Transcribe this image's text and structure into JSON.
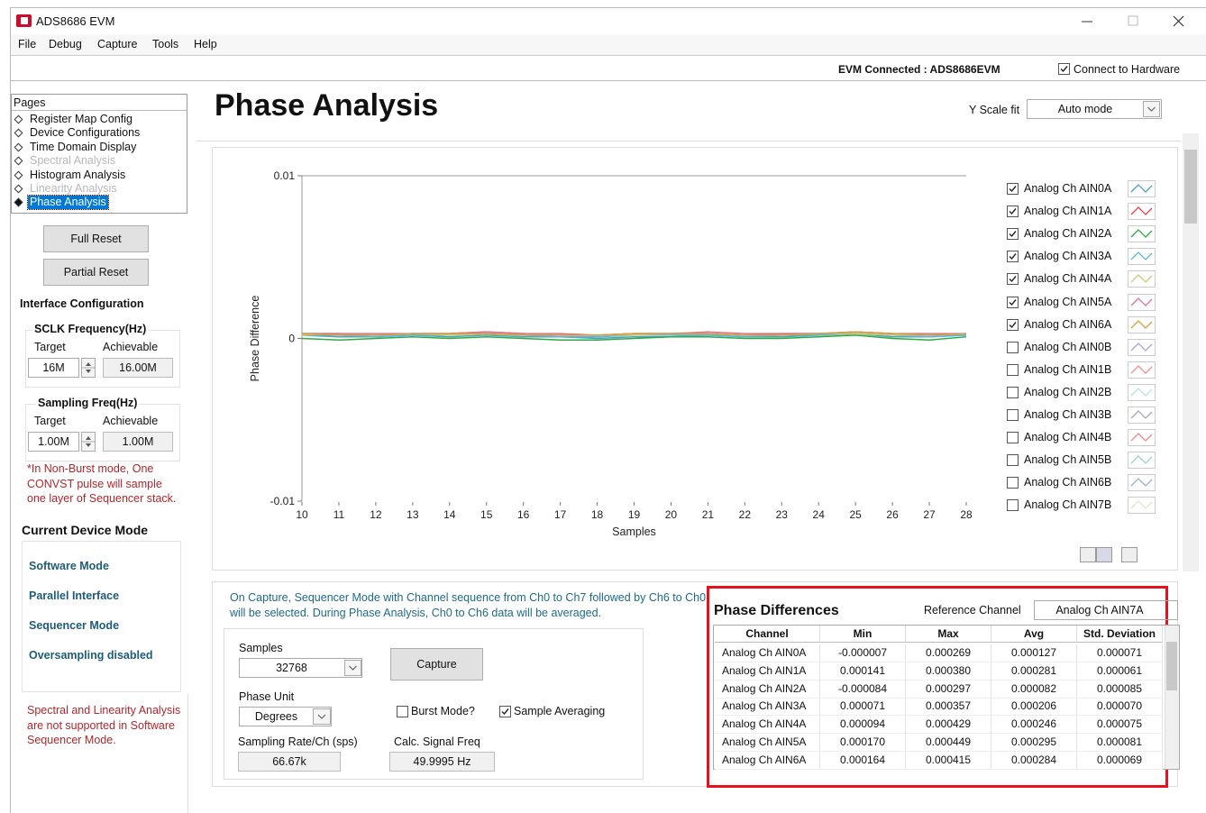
{
  "window": {
    "title": "ADS8686 EVM"
  },
  "menu": [
    "File",
    "Debug",
    "Capture",
    "Tools",
    "Help"
  ],
  "status": {
    "connection": "EVM Connected : ADS8686EVM",
    "connect_label": "Connect to Hardware",
    "connect_checked": true
  },
  "pages": {
    "title": "Pages",
    "items": [
      {
        "label": "Register Map Config"
      },
      {
        "label": "Device Configurations"
      },
      {
        "label": "Time Domain Display"
      },
      {
        "label": "Spectral Analysis",
        "disabled": true
      },
      {
        "label": "Histogram Analysis"
      },
      {
        "label": "Linearity Analysis",
        "disabled": true
      },
      {
        "label": "Phase Analysis",
        "selected": true
      }
    ]
  },
  "buttons": {
    "full_reset": "Full Reset",
    "partial_reset": "Partial Reset"
  },
  "interface": {
    "title": "Interface Configuration",
    "sclk": {
      "title": "SCLK Frequency(Hz)",
      "target_label": "Target",
      "achievable_label": "Achievable",
      "target": "16M",
      "achievable": "16.00M"
    },
    "sampling": {
      "title": "Sampling Freq(Hz)",
      "target_label": "Target",
      "achievable_label": "Achievable",
      "target": "1.00M",
      "achievable": "1.00M"
    },
    "note": "*In Non-Burst mode, One CONVST pulse will sample one layer of Sequencer stack."
  },
  "device_mode": {
    "title": "Current Device Mode",
    "items": [
      "Software Mode",
      "Parallel Interface",
      "Sequencer Mode",
      "Oversampling disabled"
    ],
    "warning": "Spectral and Linearity Analysis are not supported in Software Sequencer Mode."
  },
  "header": {
    "title": "Phase Analysis",
    "y_scale_label": "Y Scale fit",
    "y_scale_value": "Auto mode"
  },
  "chart_data": {
    "type": "line",
    "x_label": "Samples",
    "y_label": "Phase Difference",
    "x": [
      10,
      11,
      12,
      13,
      14,
      15,
      16,
      17,
      18,
      19,
      20,
      21,
      22,
      23,
      24,
      25,
      26,
      27,
      28
    ],
    "xlim": [
      10,
      28
    ],
    "xticks": [
      10,
      11,
      12,
      13,
      14,
      15,
      16,
      17,
      18,
      19,
      20,
      21,
      22,
      23,
      24,
      25,
      26,
      27,
      28
    ],
    "ylim": [
      -0.01,
      0.01
    ],
    "yticks": [
      -0.01,
      0,
      0.01
    ],
    "series": [
      {
        "name": "Analog Ch AIN0A",
        "color": "#4aa3c0",
        "checked": true,
        "values": [
          0.0002,
          0.0001,
          0.0001,
          0.0002,
          0.0001,
          0.0002,
          0.0001,
          0.0001,
          0,
          0.0001,
          0.0001,
          0.0002,
          0.0001,
          0.0001,
          0.0002,
          0.0003,
          0.0001,
          0.0001,
          0.0002
        ]
      },
      {
        "name": "Analog Ch AIN1A",
        "color": "#e0404a",
        "checked": true,
        "values": [
          0.0003,
          0.0003,
          0.0002,
          0.0003,
          0.0003,
          0.0004,
          0.0003,
          0.0002,
          0.0002,
          0.0003,
          0.0003,
          0.0003,
          0.0002,
          0.0003,
          0.0003,
          0.0004,
          0.0003,
          0.0002,
          0.0003
        ]
      },
      {
        "name": "Analog Ch AIN2A",
        "color": "#2eaa3e",
        "checked": true,
        "values": [
          0,
          -0.0001,
          0,
          0.0001,
          0,
          0.0001,
          0,
          -0.0001,
          -0.0001,
          0,
          0.0001,
          0.0001,
          0,
          0,
          0.0001,
          0.0002,
          0,
          -0.0001,
          0.0001
        ]
      },
      {
        "name": "Analog Ch AIN3A",
        "color": "#58b4e4",
        "checked": true,
        "values": [
          0.0002,
          0.0002,
          0.0001,
          0.0002,
          0.0002,
          0.0003,
          0.0002,
          0.0001,
          0.0001,
          0.0002,
          0.0002,
          0.0002,
          0.0001,
          0.0002,
          0.0002,
          0.0003,
          0.0002,
          0.0001,
          0.0002
        ]
      },
      {
        "name": "Analog Ch AIN4A",
        "color": "#cfc878",
        "checked": true,
        "values": [
          0.0002,
          0.0003,
          0.0002,
          0.0003,
          0.0002,
          0.0003,
          0.0003,
          0.0002,
          0.0002,
          0.0002,
          0.0003,
          0.0003,
          0.0002,
          0.0002,
          0.0003,
          0.0003,
          0.0002,
          0.0002,
          0.0003
        ]
      },
      {
        "name": "Analog Ch AIN5A",
        "color": "#e0708e",
        "checked": true,
        "values": [
          0.0003,
          0.0003,
          0.0003,
          0.0003,
          0.0003,
          0.0004,
          0.0003,
          0.0003,
          0.0002,
          0.0003,
          0.0003,
          0.0004,
          0.0003,
          0.0003,
          0.0003,
          0.0004,
          0.0003,
          0.0003,
          0.0003
        ]
      },
      {
        "name": "Analog Ch AIN6A",
        "color": "#d2a040",
        "checked": true,
        "values": [
          0.0003,
          0.0002,
          0.0002,
          0.0003,
          0.0003,
          0.0003,
          0.0002,
          0.0002,
          0.0002,
          0.0003,
          0.0003,
          0.0003,
          0.0002,
          0.0002,
          0.0003,
          0.0004,
          0.0003,
          0.0002,
          0.0003
        ]
      },
      {
        "name": "Analog Ch AIN0B",
        "color": "#a6a8d4",
        "checked": false
      },
      {
        "name": "Analog Ch AIN1B",
        "color": "#f08c8c",
        "checked": false
      },
      {
        "name": "Analog Ch AIN2B",
        "color": "#b4e2e2",
        "checked": false
      },
      {
        "name": "Analog Ch AIN3B",
        "color": "#a4a4c4",
        "checked": false
      },
      {
        "name": "Analog Ch AIN4B",
        "color": "#f08888",
        "checked": false
      },
      {
        "name": "Analog Ch AIN5B",
        "color": "#94d4d4",
        "checked": false
      },
      {
        "name": "Analog Ch AIN6B",
        "color": "#98b4d4",
        "checked": false
      },
      {
        "name": "Analog Ch AIN7B",
        "color": "#dfe8cc",
        "checked": false
      }
    ]
  },
  "capture": {
    "info": "On Capture, Sequencer Mode with Channel sequence from Ch0 to Ch7 followed by Ch6 to Ch0 will be selected. During Phase Analysis, Ch0 to Ch6 data will be averaged.",
    "samples_label": "Samples",
    "samples": "32768",
    "capture_button": "Capture",
    "phase_unit_label": "Phase Unit",
    "phase_unit": "Degrees",
    "burst_mode": {
      "label": "Burst Mode?",
      "checked": false
    },
    "sample_averaging": {
      "label": "Sample Averaging",
      "checked": true
    },
    "sampling_rate_label": "Sampling Rate/Ch (sps)",
    "sampling_rate": "66.67k",
    "signal_freq_label": "Calc. Signal Freq",
    "signal_freq": "49.9995 Hz"
  },
  "table": {
    "title": "Phase Differences",
    "reference_label": "Reference Channel",
    "reference": "Analog Ch AIN7A",
    "columns": [
      "Channel",
      "Min",
      "Max",
      "Avg",
      "Std. Deviation"
    ],
    "rows": [
      [
        "Analog Ch AIN0A",
        "-0.000007",
        "0.000269",
        "0.000127",
        "0.000071"
      ],
      [
        "Analog Ch AIN1A",
        "0.000141",
        "0.000380",
        "0.000281",
        "0.000061"
      ],
      [
        "Analog Ch AIN2A",
        "-0.000084",
        "0.000297",
        "0.000082",
        "0.000085"
      ],
      [
        "Analog Ch AIN3A",
        "0.000071",
        "0.000357",
        "0.000206",
        "0.000070"
      ],
      [
        "Analog Ch AIN4A",
        "0.000094",
        "0.000429",
        "0.000246",
        "0.000075"
      ],
      [
        "Analog Ch AIN5A",
        "0.000170",
        "0.000449",
        "0.000295",
        "0.000081"
      ],
      [
        "Analog Ch AIN6A",
        "0.000164",
        "0.000415",
        "0.000284",
        "0.000069"
      ]
    ]
  }
}
